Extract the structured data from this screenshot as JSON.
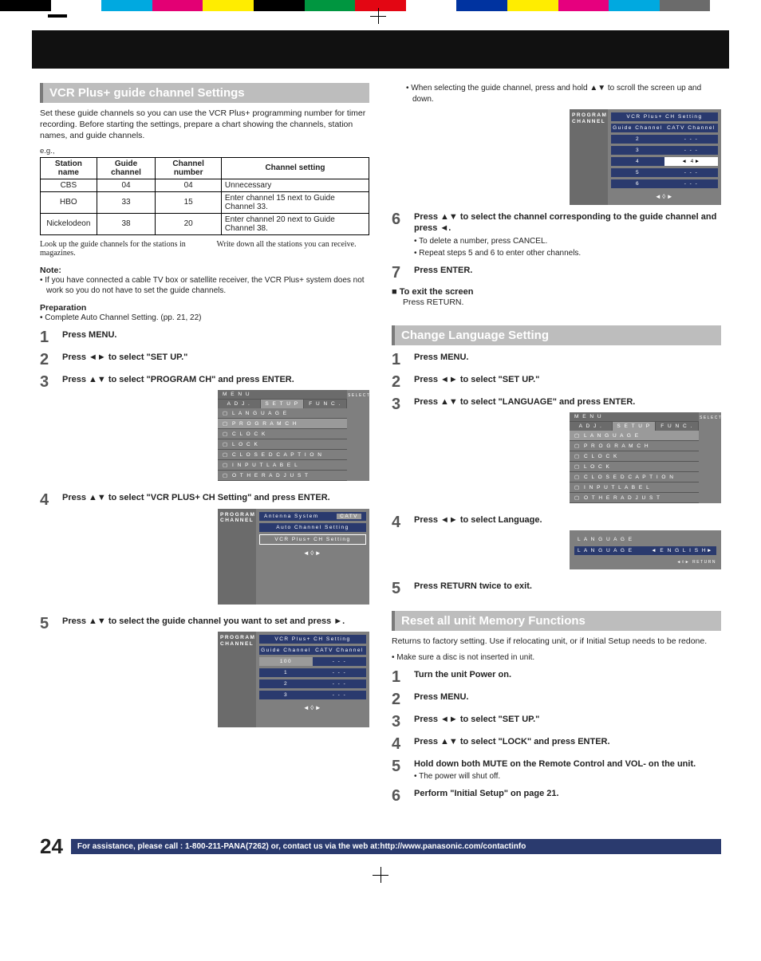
{
  "colorbar": [
    "#000000",
    "#ffffff",
    "#00a9e0",
    "#e30074",
    "#ffed00",
    "#000000",
    "#009640",
    "#e30613",
    "#ffffff",
    "#0033a0",
    "#ffed00",
    "#e6007e",
    "#00a9e0",
    "#6b6b6b",
    "#ffffff"
  ],
  "page_num": "24",
  "footer": "For assistance, please call : 1-800-211-PANA(7262) or, contact us via the web at:http://www.panasonic.com/contactinfo",
  "vcr": {
    "heading": "VCR Plus+ guide channel Settings",
    "intro": "Set these guide channels so you can use the VCR Plus+ programming number for timer recording. Before starting the settings, prepare a chart showing the channels, station names, and guide channels.",
    "eg": "e.g.,",
    "table": {
      "headers": [
        "Station name",
        "Guide channel",
        "Channel number",
        "Channel setting"
      ],
      "rows": [
        [
          "CBS",
          "04",
          "04",
          "Unnecessary"
        ],
        [
          "HBO",
          "33",
          "15",
          "Enter channel 15 next to Guide Channel 33."
        ],
        [
          "Nickelodeon",
          "38",
          "20",
          "Enter channel 20 next to Guide Channel 38."
        ]
      ]
    },
    "caption_l": "Look up the guide channels for the stations in magazines.",
    "caption_r": "Write down all the stations you can receive.",
    "note_h": "Note:",
    "note": "• If you have connected a cable TV box or satellite receiver, the VCR Plus+ system does not work so you do not have to set the guide channels.",
    "prep_h": "Preparation",
    "prep": "• Complete Auto Channel Setting. (pp. 21, 22)",
    "steps": [
      {
        "n": "1",
        "t": "Press MENU."
      },
      {
        "n": "2",
        "t": "Press ◄► to select \"SET UP.\""
      },
      {
        "n": "3",
        "t": "Press ▲▼ to select \"PROGRAM CH\" and press ENTER."
      },
      {
        "n": "4",
        "t": "Press ▲▼ to select \"VCR PLUS+ CH Setting\" and press ENTER."
      },
      {
        "n": "5",
        "t": "Press ▲▼ to select the guide channel you want to set and press ►."
      }
    ],
    "right_note": "• When selecting the guide channel, press and hold ▲▼ to scroll the screen up and down.",
    "step6": {
      "n": "6",
      "t": "Press ▲▼ to select the channel corresponding to the guide channel and press ◄.",
      "subs": [
        "• To delete a number, press CANCEL.",
        "• Repeat steps 5 and 6 to enter other channels."
      ]
    },
    "step7": {
      "n": "7",
      "t": "Press ENTER."
    },
    "exit_h": "■ To exit the screen",
    "exit_t": "Press RETURN."
  },
  "osd_menu": {
    "title": "M E N U",
    "tabs": [
      "A D J .",
      "S E T   U P",
      "F U N C ."
    ],
    "items": [
      "L A N G U A G E",
      "P R O G R A M   C H",
      "C L O C K",
      "L O C K",
      "C L O S E D   C A P T I O N",
      "I N P U T   L A B E L",
      "O T H E R   A D J U S T"
    ],
    "side": "SELECT"
  },
  "osd_prog1": {
    "side": "PROGRAM CHANNEL",
    "r1": "Antenna System",
    "r1v": "CATV",
    "r2": "Auto Channel Setting",
    "r3": "VCR Plus+ CH Setting"
  },
  "osd_prog2": {
    "side": "PROGRAM CHANNEL",
    "title": "VCR Plus+ CH Setting",
    "h1": "Guide Channel",
    "h2": "CATV Channel",
    "rows": [
      [
        "100",
        "- - -"
      ],
      [
        "1",
        "- - -"
      ],
      [
        "2",
        "- - -"
      ],
      [
        "3",
        "- - -"
      ]
    ]
  },
  "osd_prog3": {
    "side": "PROGRAM CHANNEL",
    "title": "VCR Plus+ CH Setting",
    "h1": "Guide Channel",
    "h2": "CATV Channel",
    "rows": [
      [
        "2",
        "- - -"
      ],
      [
        "3",
        "- - -"
      ],
      [
        "4",
        "◄ 4►"
      ],
      [
        "5",
        "- - -"
      ],
      [
        "6",
        "- - -"
      ]
    ]
  },
  "lang": {
    "heading": "Change Language Setting",
    "steps": [
      {
        "n": "1",
        "t": "Press MENU."
      },
      {
        "n": "2",
        "t": "Press ◄► to select \"SET UP.\""
      },
      {
        "n": "3",
        "t": "Press ▲▼ to select \"LANGUAGE\" and press ENTER."
      },
      {
        "n": "4",
        "t": "Press ◄► to select Language."
      },
      {
        "n": "5",
        "t": "Press RETURN twice to exit."
      }
    ],
    "osd": {
      "t": "L A N G U A G E",
      "l": "L A N G U A G E",
      "v": "◄ E N G L I S H►",
      "ret": "RETURN"
    }
  },
  "reset": {
    "heading": "Reset all unit Memory Functions",
    "intro": "Returns to factory setting. Use if relocating unit, or if Initial Setup needs to be redone.",
    "sub": "• Make sure a disc is not inserted in unit.",
    "steps": [
      {
        "n": "1",
        "t": "Turn the unit Power on."
      },
      {
        "n": "2",
        "t": "Press MENU."
      },
      {
        "n": "3",
        "t": "Press ◄► to select \"SET UP.\""
      },
      {
        "n": "4",
        "t": "Press ▲▼ to select \"LOCK\" and press ENTER."
      },
      {
        "n": "5",
        "t": "Hold down both MUTE on the Remote Control and VOL- on the unit.",
        "sub": "• The power will shut off."
      },
      {
        "n": "6",
        "t": "Perform \"Initial Setup\" on page 21."
      }
    ]
  }
}
